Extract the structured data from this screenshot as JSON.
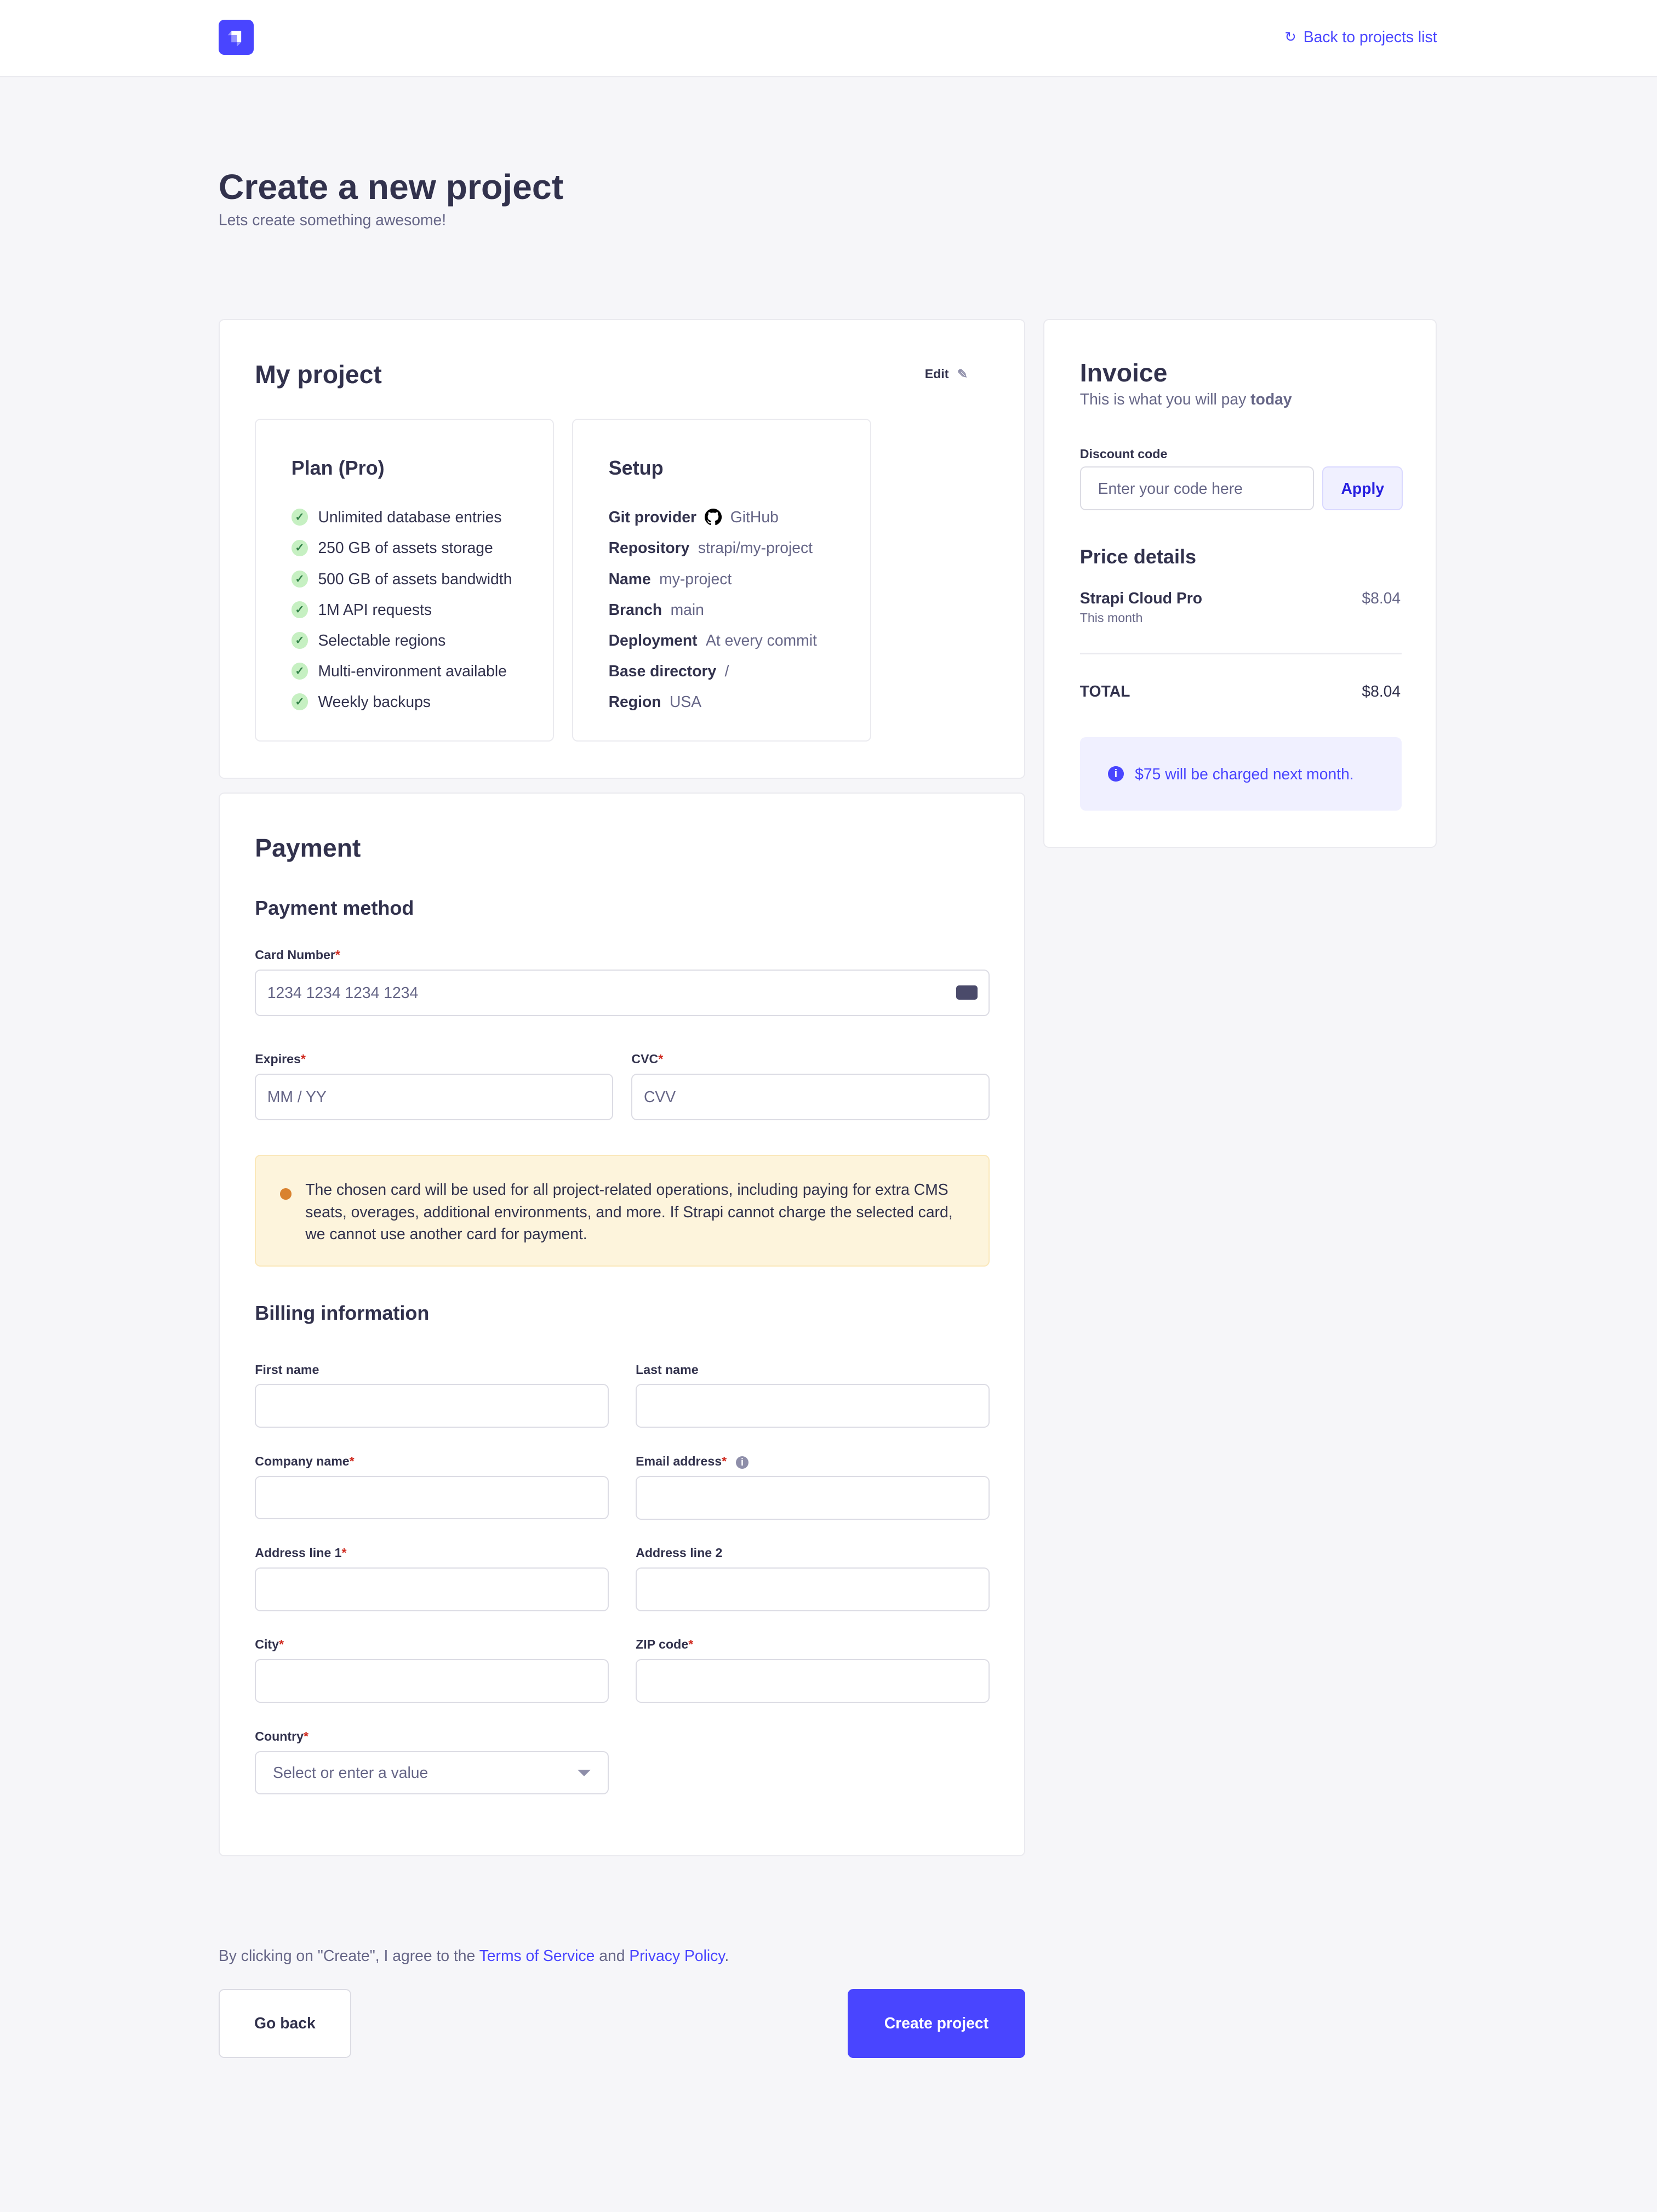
{
  "header": {
    "back_label": "Back to projects list",
    "logo": "strapi-logo"
  },
  "page": {
    "title": "Create a new project",
    "subtitle": "Lets create something awesome!"
  },
  "project": {
    "title": "My project",
    "edit_label": "Edit",
    "plan": {
      "title": "Plan (Pro)",
      "features": [
        "Unlimited database entries",
        "250 GB of assets storage",
        "500 GB of assets bandwidth",
        "1M API requests",
        "Selectable regions",
        "Multi-environment available",
        "Weekly backups"
      ]
    },
    "setup": {
      "title": "Setup",
      "rows": [
        {
          "label": "Git provider",
          "value": "GitHub"
        },
        {
          "label": "Repository",
          "value": "strapi/my-project"
        },
        {
          "label": "Name",
          "value": "my-project"
        },
        {
          "label": "Branch",
          "value": "main"
        },
        {
          "label": "Deployment",
          "value": "At every commit"
        },
        {
          "label": "Base directory",
          "value": "/"
        },
        {
          "label": "Region",
          "value": "USA"
        }
      ]
    }
  },
  "payment": {
    "title": "Payment",
    "method_title": "Payment method",
    "card_label": "Card Number",
    "card_placeholder": "1234 1234 1234 1234",
    "expires_label": "Expires",
    "expires_placeholder": "MM / YY",
    "cvc_label": "CVC",
    "cvc_placeholder": "CVV",
    "warning": "The chosen card will be used for all project-related operations, including paying for extra CMS seats, overages, additional environments, and more. If Strapi cannot charge the selected card, we cannot use another card for payment.",
    "billing_title": "Billing information",
    "fields": {
      "first_name": "First name",
      "last_name": "Last name",
      "company": "Company name",
      "email": "Email address",
      "address1": "Address line 1",
      "address2": "Address line 2",
      "city": "City",
      "zip": "ZIP code",
      "country": "Country"
    },
    "country_placeholder": "Select or enter a value"
  },
  "invoice": {
    "title": "Invoice",
    "subtitle_prefix": "This is what you will pay",
    "subtitle_bold": "today",
    "discount_label": "Discount code",
    "discount_placeholder": "Enter your code here",
    "apply_label": "Apply",
    "price_title": "Price details",
    "item_name": "Strapi Cloud Pro",
    "item_period": "This month",
    "item_price": "$8.04",
    "total_label": "TOTAL",
    "total_value": "$8.04",
    "notice": "$75 will be charged next month."
  },
  "footer": {
    "terms_prefix": "By clicking on \"Create\", I agree to the",
    "terms_link": "Terms of Service",
    "and": "and",
    "privacy_link": "Privacy Policy",
    "back_label": "Go back",
    "create_label": "Create project"
  },
  "colors": {
    "primary": "#4945ff",
    "background": "#f6f6f9",
    "warning_bg": "#fdf4dc",
    "success": "#5cb176"
  }
}
